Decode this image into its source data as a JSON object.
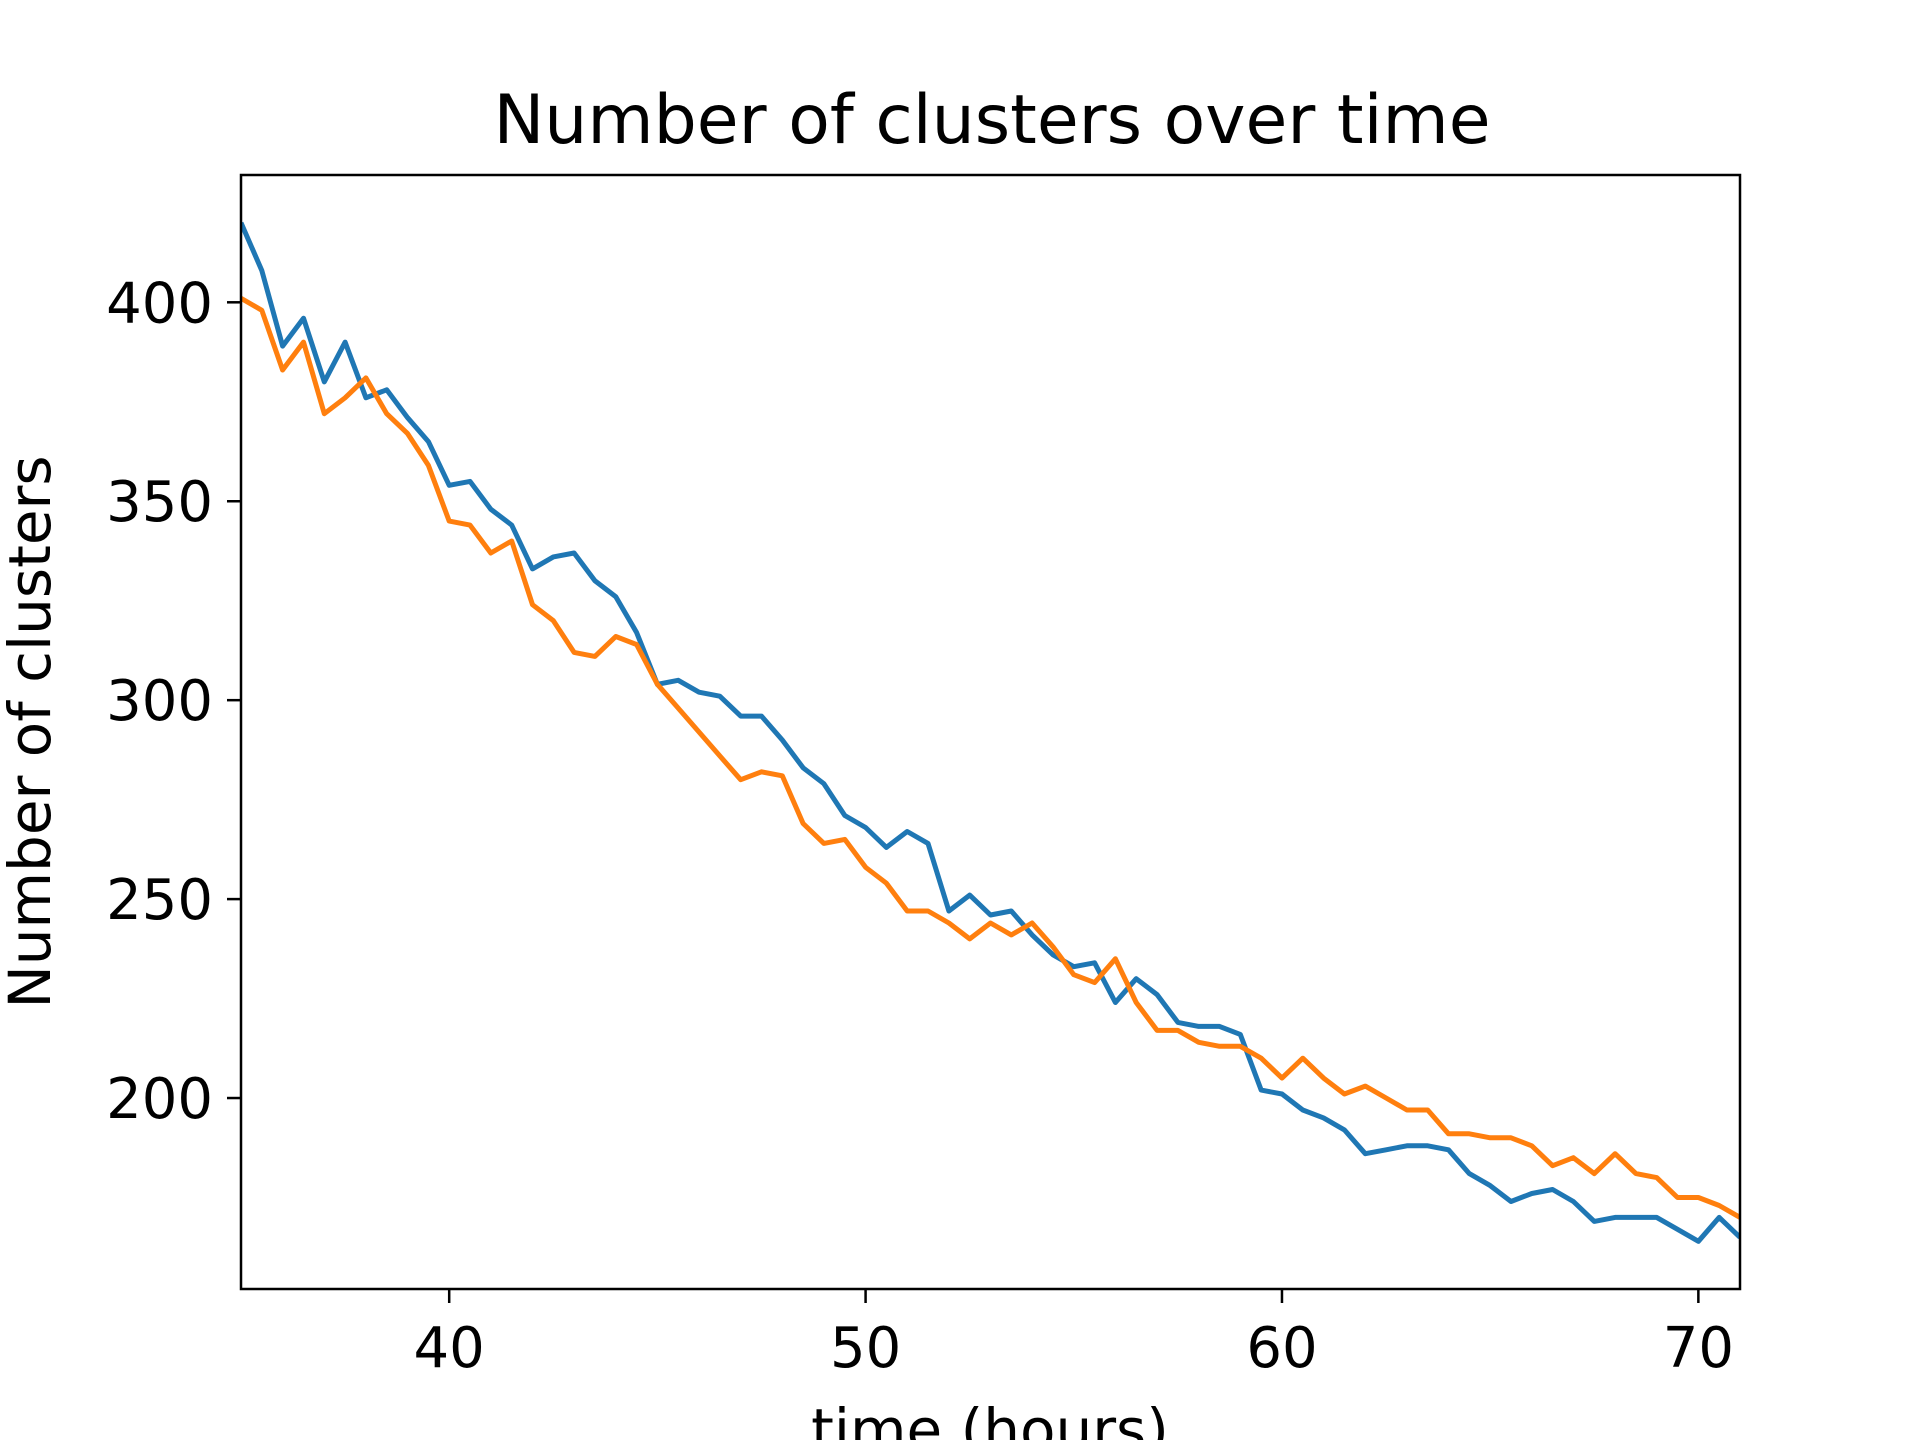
{
  "chart_data": {
    "type": "line",
    "title": "Number of clusters over time",
    "xlabel": "time (hours)",
    "ylabel": "Number of clusters",
    "xlim": [
      35,
      71
    ],
    "ylim": [
      152,
      432
    ],
    "xticks": [
      40,
      50,
      60,
      70
    ],
    "yticks": [
      200,
      250,
      300,
      350,
      400
    ],
    "grid": false,
    "legend": "none",
    "x": [
      35,
      35.5,
      36,
      36.5,
      37,
      37.5,
      38,
      38.5,
      39,
      39.5,
      40,
      40.5,
      41,
      41.5,
      42,
      42.5,
      43,
      43.5,
      44,
      44.5,
      45,
      45.5,
      46,
      46.5,
      47,
      47.5,
      48,
      48.5,
      49,
      49.5,
      50,
      50.5,
      51,
      51.5,
      52,
      52.5,
      53,
      53.5,
      54,
      54.5,
      55,
      55.5,
      56,
      56.5,
      57,
      57.5,
      58,
      58.5,
      59,
      59.5,
      60,
      60.5,
      61,
      61.5,
      62,
      62.5,
      63,
      63.5,
      64,
      64.5,
      65,
      65.5,
      66,
      66.5,
      67,
      67.5,
      68,
      68.5,
      69,
      69.5,
      70,
      70.5,
      71
    ],
    "series": [
      {
        "color": "#1f77b4",
        "values": [
          420,
          408,
          389,
          396,
          380,
          390,
          376,
          378,
          371,
          365,
          354,
          355,
          348,
          344,
          333,
          336,
          337,
          330,
          326,
          317,
          304,
          305,
          302,
          301,
          296,
          296,
          290,
          283,
          279,
          271,
          268,
          263,
          267,
          264,
          247,
          251,
          246,
          247,
          241,
          236,
          233,
          234,
          224,
          230,
          226,
          219,
          218,
          218,
          216,
          202,
          201,
          197,
          195,
          192,
          186,
          187,
          188,
          188,
          187,
          181,
          178,
          174,
          176,
          177,
          174,
          169,
          170,
          170,
          170,
          167,
          164,
          170,
          165
        ],
        "name": ""
      },
      {
        "color": "#ff7f0e",
        "values": [
          401,
          398,
          383,
          390,
          372,
          376,
          381,
          372,
          367,
          359,
          345,
          344,
          337,
          340,
          324,
          320,
          312,
          311,
          316,
          314,
          304,
          298,
          292,
          286,
          280,
          282,
          281,
          269,
          264,
          265,
          258,
          254,
          247,
          247,
          244,
          240,
          244,
          241,
          244,
          238,
          231,
          229,
          235,
          224,
          217,
          217,
          214,
          213,
          213,
          210,
          205,
          210,
          205,
          201,
          203,
          200,
          197,
          197,
          191,
          191,
          190,
          190,
          188,
          183,
          185,
          181,
          186,
          181,
          180,
          175,
          175,
          173,
          170
        ],
        "name": ""
      }
    ]
  }
}
